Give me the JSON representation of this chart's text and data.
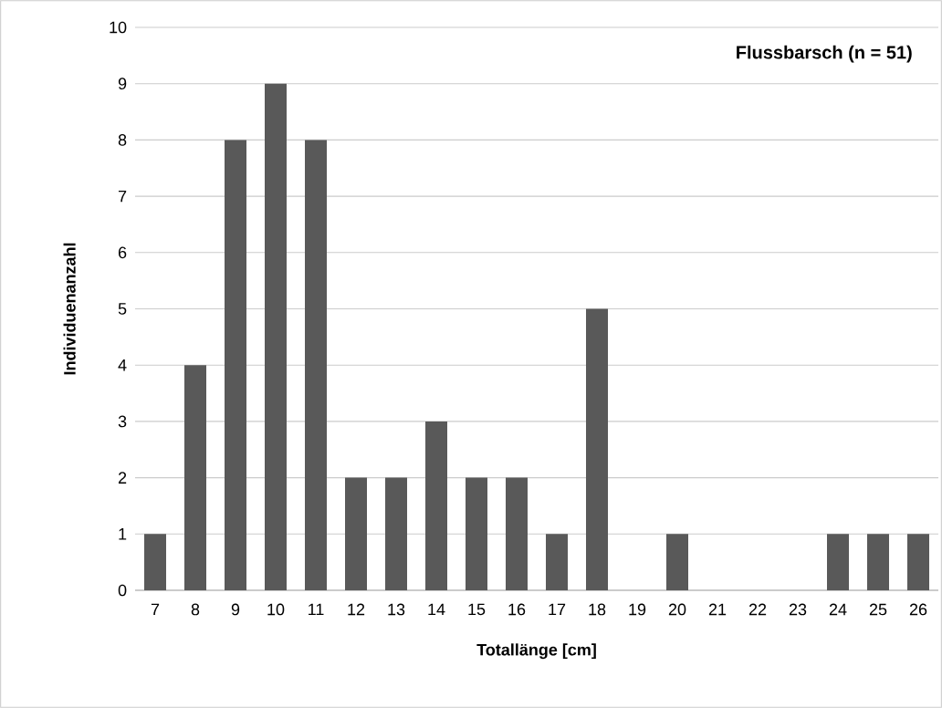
{
  "chart_data": {
    "type": "bar",
    "title": "Flussbarsch (n = 51)",
    "xlabel": "Totallänge [cm]",
    "ylabel": "Individuenanzahl",
    "categories": [
      "7",
      "8",
      "9",
      "10",
      "11",
      "12",
      "13",
      "14",
      "15",
      "16",
      "17",
      "18",
      "19",
      "20",
      "21",
      "22",
      "23",
      "24",
      "25",
      "26"
    ],
    "values": [
      1,
      4,
      8,
      9,
      8,
      2,
      2,
      3,
      2,
      2,
      1,
      5,
      0,
      1,
      0,
      0,
      0,
      1,
      1,
      1
    ],
    "color": "#595959",
    "ylim": [
      0,
      10
    ],
    "yticks": [
      0,
      1,
      2,
      3,
      4,
      5,
      6,
      7,
      8,
      9,
      10
    ],
    "grid": "y"
  }
}
